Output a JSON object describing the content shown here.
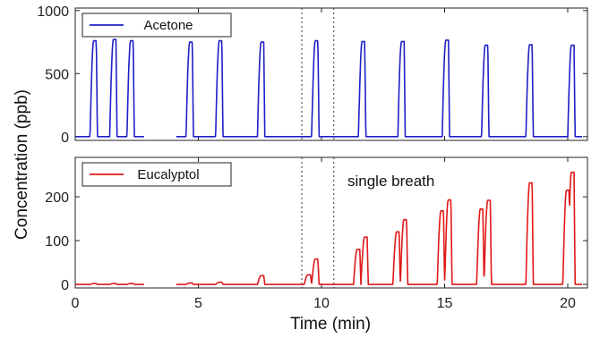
{
  "chart_data": {
    "type": "line",
    "xlabel": "Time (min)",
    "ylabel": "Concentration (ppb)",
    "xlim": [
      0,
      20.8
    ],
    "x_ticks": [
      0,
      5,
      10,
      15,
      20
    ],
    "annotation": "single breath",
    "annotation_region": [
      9.2,
      10.5
    ],
    "panels": [
      {
        "name": "top",
        "ylim": [
          -30,
          1020
        ],
        "y_ticks": [
          0,
          500,
          1000
        ],
        "legend_position": "top-left",
        "series": [
          {
            "name": "Acetone",
            "color": "#1f1fc8",
            "baseline": 0,
            "peak_width": 0.3,
            "peaks": [
              [
                0.6,
                760
              ],
              [
                1.4,
                770
              ],
              [
                2.1,
                760
              ],
              [
                4.5,
                750
              ],
              [
                5.7,
                760
              ],
              [
                7.4,
                750
              ],
              [
                9.6,
                760
              ],
              [
                11.5,
                755
              ],
              [
                13.1,
                755
              ],
              [
                14.9,
                765
              ],
              [
                16.5,
                725
              ],
              [
                18.3,
                730
              ],
              [
                20.0,
                725
              ]
            ],
            "gaps": [
              [
                2.8,
                4.1
              ]
            ]
          }
        ]
      },
      {
        "name": "bottom",
        "ylim": [
          -8,
          290
        ],
        "y_ticks": [
          0,
          100,
          200
        ],
        "legend_position": "top-left",
        "series": [
          {
            "name": "Eucalyptol",
            "color": "#e01818",
            "baseline": 0,
            "peak_width": 0.3,
            "peaks": [
              [
                0.6,
                2
              ],
              [
                1.4,
                2
              ],
              [
                2.1,
                2
              ],
              [
                4.5,
                3
              ],
              [
                5.7,
                5
              ],
              [
                7.4,
                20
              ],
              [
                9.3,
                22
              ],
              [
                9.6,
                58
              ],
              [
                11.3,
                80
              ],
              [
                11.6,
                108
              ],
              [
                12.9,
                120
              ],
              [
                13.2,
                148
              ],
              [
                14.7,
                168
              ],
              [
                15.0,
                193
              ],
              [
                16.3,
                172
              ],
              [
                16.6,
                192
              ],
              [
                18.3,
                232
              ],
              [
                19.8,
                215
              ],
              [
                20.0,
                256
              ]
            ],
            "gaps": [
              [
                2.8,
                4.1
              ]
            ]
          }
        ]
      }
    ]
  }
}
